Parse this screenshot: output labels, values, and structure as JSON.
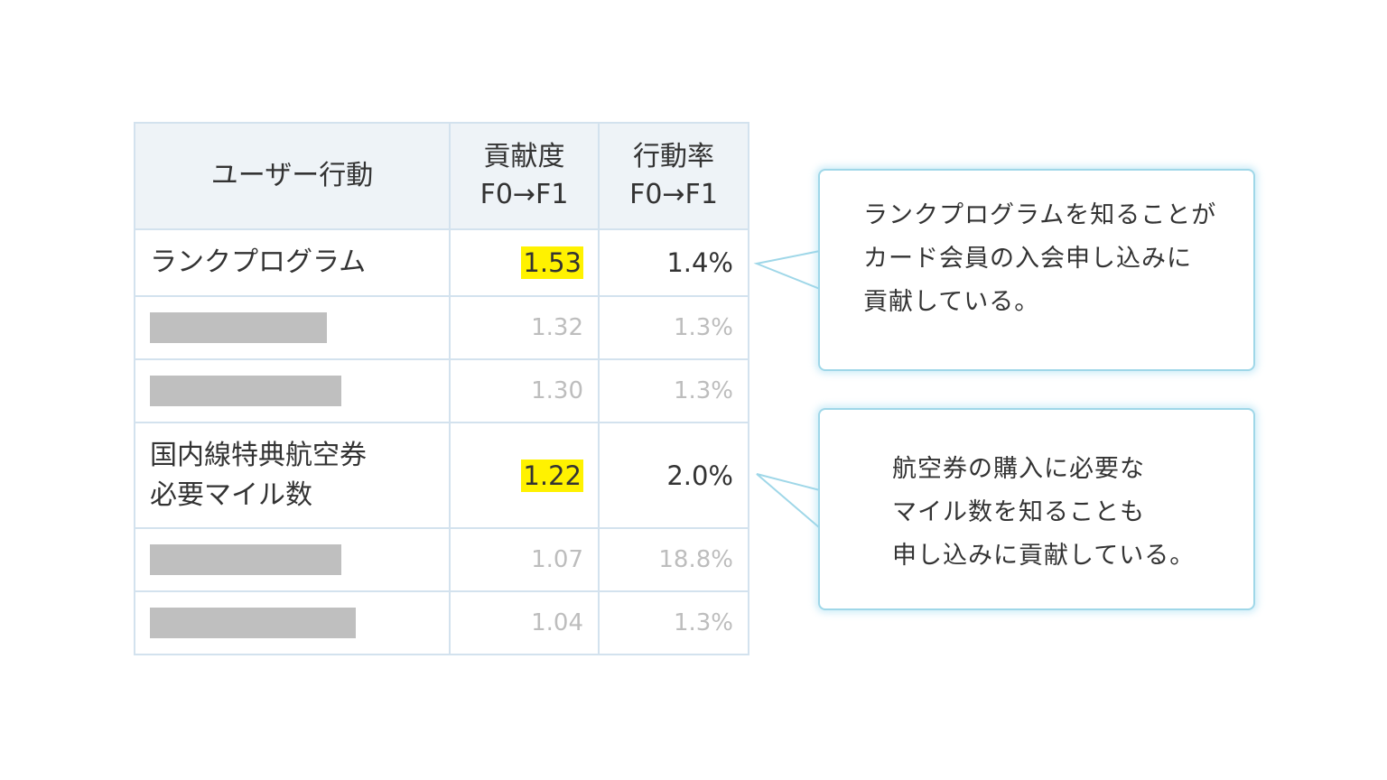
{
  "table": {
    "headers": {
      "action": "ユーザー行動",
      "contribution_line1": "貢献度",
      "contribution_line2": "F0→F1",
      "rate_line1": "行動率",
      "rate_line2": "F0→F1"
    },
    "rows": [
      {
        "action": "ランクプログラム",
        "contribution": "1.53",
        "rate": "1.4%",
        "highlighted": true
      },
      {
        "action": "",
        "contribution": "1.32",
        "rate": "1.3%",
        "highlighted": false,
        "redacted": true
      },
      {
        "action": "",
        "contribution": "1.30",
        "rate": "1.3%",
        "highlighted": false,
        "redacted": true
      },
      {
        "action_line1": "国内線特典航空券",
        "action_line2": "必要マイル数",
        "contribution": "1.22",
        "rate": "2.0%",
        "highlighted": true
      },
      {
        "action": "",
        "contribution": "1.07",
        "rate": "18.8%",
        "highlighted": false,
        "redacted": true
      },
      {
        "action": "",
        "contribution": "1.04",
        "rate": "1.3%",
        "highlighted": false,
        "redacted": true
      }
    ]
  },
  "callouts": [
    {
      "lines": [
        "ランクプログラムを知ることが",
        "カード会員の入会申し込みに",
        "貢献している。"
      ]
    },
    {
      "lines": [
        "航空券の購入に必要な",
        "マイル数を知ることも",
        "申し込みに貢献している。"
      ]
    }
  ],
  "colors": {
    "highlight": "#fff200",
    "header_background": "#eef3f7",
    "table_border": "#d3e2ee",
    "callout_border": "#9fd7e8",
    "redaction_bar": "#bfbfbf",
    "muted_text": "#bdbdbd"
  }
}
